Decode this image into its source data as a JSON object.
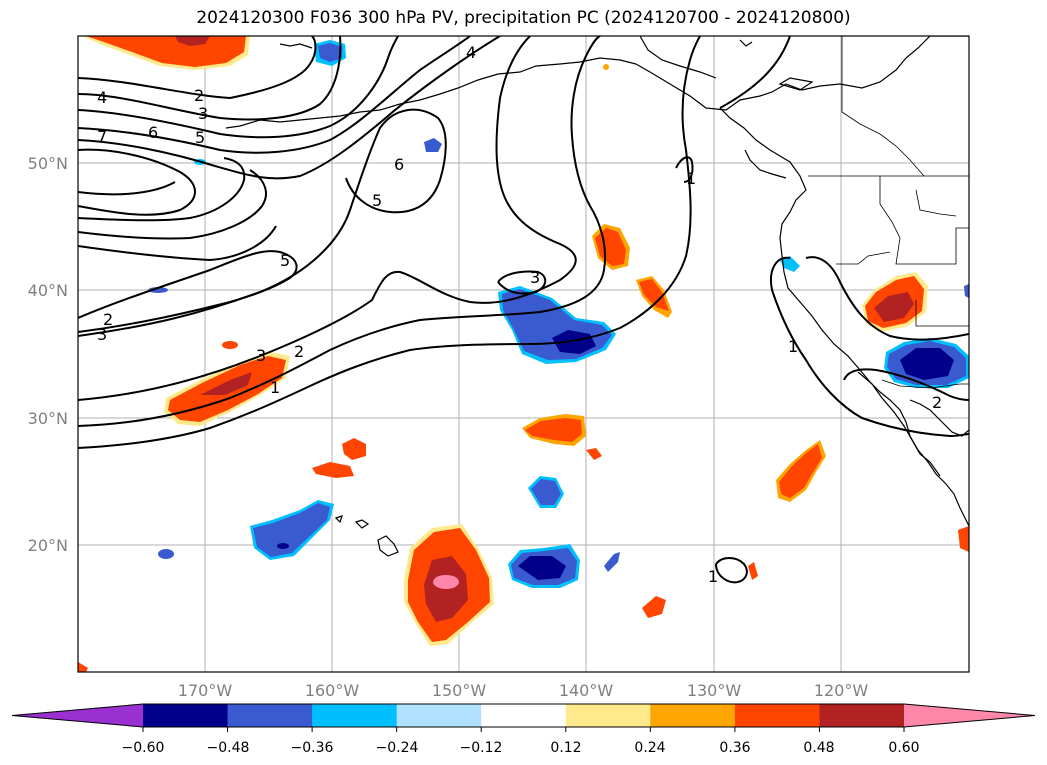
{
  "title": "2024120300 F036 300 hPa PV, precipitation PC (2024120700 - 2024120800)",
  "lat_ticks": [
    "50°N",
    "40°N",
    "30°N",
    "20°N"
  ],
  "lon_ticks": [
    "170°W",
    "160°W",
    "150°W",
    "140°W",
    "130°W",
    "120°W"
  ],
  "colorbar": {
    "ticks": [
      "−0.60",
      "−0.48",
      "−0.36",
      "−0.24",
      "−0.12",
      "0.12",
      "0.24",
      "0.36",
      "0.48",
      "0.60"
    ],
    "colors": [
      "#9b30d0",
      "#00008b",
      "#3a5bd0",
      "#00bfff",
      "#b0e2ff",
      "#ffffff",
      "#ffe98a",
      "#ffa500",
      "#ff4500",
      "#b22222",
      "#ff88aa"
    ]
  },
  "contour_labels": [
    "4",
    "2",
    "3",
    "7",
    "6",
    "5",
    "6",
    "5",
    "4",
    "5",
    "3",
    "2",
    "3",
    "3",
    "2",
    "1",
    "1",
    "1",
    "1",
    "2",
    "1"
  ]
}
